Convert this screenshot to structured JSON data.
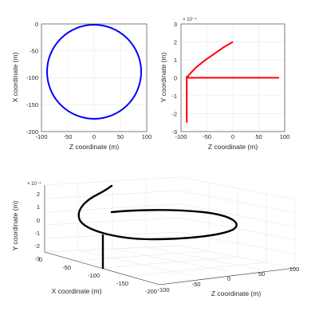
{
  "chart_data": [
    {
      "type": "line",
      "xlabel": "Z coordinate (m)",
      "ylabel": "X coordinate (m)",
      "xlim": [
        -100,
        100
      ],
      "ylim": [
        -200,
        0
      ],
      "xticks": [
        "-100",
        "-50",
        "0",
        "50",
        "100"
      ],
      "yticks": [
        "0",
        "-50",
        "-100",
        "-150",
        "-200"
      ],
      "grid": true,
      "series": [
        {
          "color": "#0000ff",
          "shape": "circle",
          "center": [
            0,
            -89
          ],
          "radius": 89
        }
      ]
    },
    {
      "type": "line",
      "xlabel": "Z coordinate (m)",
      "ylabel": "Y coordinate (m)",
      "y_exponent": "× 10⁻⁴",
      "xlim": [
        -100,
        100
      ],
      "ylim": [
        -3,
        3
      ],
      "xticks": [
        "-100",
        "-50",
        "0",
        "50",
        "100"
      ],
      "yticks": [
        "3",
        "2",
        "1",
        "0",
        "-1",
        "-2",
        "-3"
      ],
      "grid": true,
      "series": [
        {
          "color": "#ff0000",
          "segments": [
            {
              "x": [
                -89,
                89
              ],
              "y": [
                0,
                0
              ]
            },
            {
              "x": [
                -89,
                -89
              ],
              "y": [
                0.1,
                -2.5
              ]
            },
            {
              "x": [
                -89,
                -85,
                -72,
                -55,
                -35,
                -18,
                0
              ],
              "y": [
                0.0,
                0.15,
                0.55,
                0.95,
                1.35,
                1.7,
                2.0
              ]
            }
          ]
        }
      ]
    },
    {
      "type": "line3d",
      "xlabel": "X coordinate (m)",
      "ylabel": "Z coordinate (m)",
      "zlabel": "Y coordinate (m)",
      "z_exponent": "× 10⁻⁴",
      "xlim": [
        -200,
        0
      ],
      "ylim": [
        -100,
        100
      ],
      "zlim": [
        -3,
        2
      ],
      "xticks": [
        "0",
        "-50",
        "-100",
        "-150",
        "-200"
      ],
      "yticks": [
        "-100",
        "-50",
        "0",
        "50",
        "100"
      ],
      "zticks": [
        "2",
        "1",
        "0",
        "-1",
        "-2",
        "-3"
      ],
      "grid": true,
      "series": [
        {
          "color": "#000000",
          "description_values": {
            "circle_center_x": -89,
            "circle_radius": 89,
            "y_level": 0,
            "drop_to": -3,
            "rise_to": 2
          }
        }
      ]
    }
  ]
}
